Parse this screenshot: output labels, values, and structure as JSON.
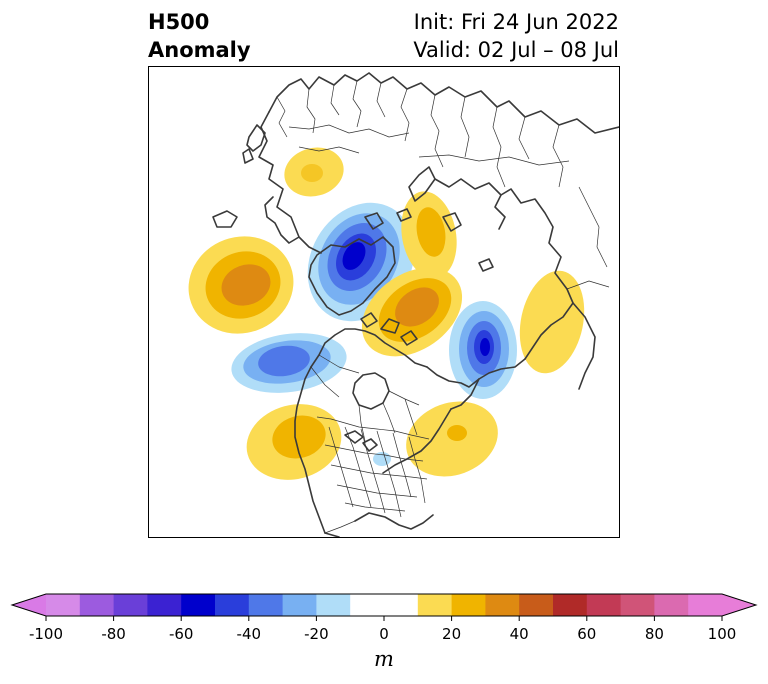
{
  "title": {
    "left_line1": "H500",
    "left_line2": "Anomaly",
    "right_line1": "Init: Fri 24 Jun 2022",
    "right_line2": "Valid: 02 Jul – 08 Jul"
  },
  "map": {
    "projection": "polar stereographic (North Pole)",
    "coastline_color": "#3a3a3a",
    "border_color": "#333333",
    "anomaly_features": [
      {
        "region": "Scandinavia",
        "sign": "positive",
        "peak": 20
      },
      {
        "region": "North Atlantic / Greenland",
        "sign": "positive",
        "peak": 40
      },
      {
        "region": "Barents-Kara Sea",
        "sign": "negative",
        "peak": -60
      },
      {
        "region": "Western Siberia",
        "sign": "positive",
        "peak": 40
      },
      {
        "region": "East Siberian Sea / Arctic",
        "sign": "positive",
        "peak": 40
      },
      {
        "region": "Bering Sea",
        "sign": "negative",
        "peak": -60
      },
      {
        "region": "Gulf of Alaska",
        "sign": "negative",
        "peak": -40
      },
      {
        "region": "Eastern Siberia / Yakutia",
        "sign": "positive",
        "peak": 20
      },
      {
        "region": "Western United States",
        "sign": "positive",
        "peak": 30
      },
      {
        "region": "Central United States",
        "sign": "negative",
        "peak": -10
      },
      {
        "region": "Northeastern US / Canadian Maritimes",
        "sign": "positive",
        "peak": 30
      }
    ]
  },
  "colorbar": {
    "ticks": [
      "-100",
      "-80",
      "-60",
      "-40",
      "-20",
      "0",
      "20",
      "40",
      "60",
      "80",
      "100"
    ],
    "unit": "m",
    "boundaries": [
      -100,
      -90,
      -80,
      -70,
      -60,
      -50,
      -40,
      -30,
      -20,
      -10,
      10,
      20,
      30,
      40,
      50,
      60,
      70,
      80,
      90,
      100
    ],
    "colors": [
      "#d68ae8",
      "#9c5bdf",
      "#6a3fd8",
      "#3b22d2",
      "#0000cc",
      "#2a3edb",
      "#4f78e8",
      "#78b0f2",
      "#b0ddf8",
      "#ffffff",
      "#fbdb52",
      "#f0b400",
      "#de8a12",
      "#c85c1a",
      "#b02a28",
      "#c23a55",
      "#d05478",
      "#db6ab0",
      "#e77dd8"
    ],
    "under_color": "#d97ae6",
    "over_color": "#e77dd8"
  }
}
